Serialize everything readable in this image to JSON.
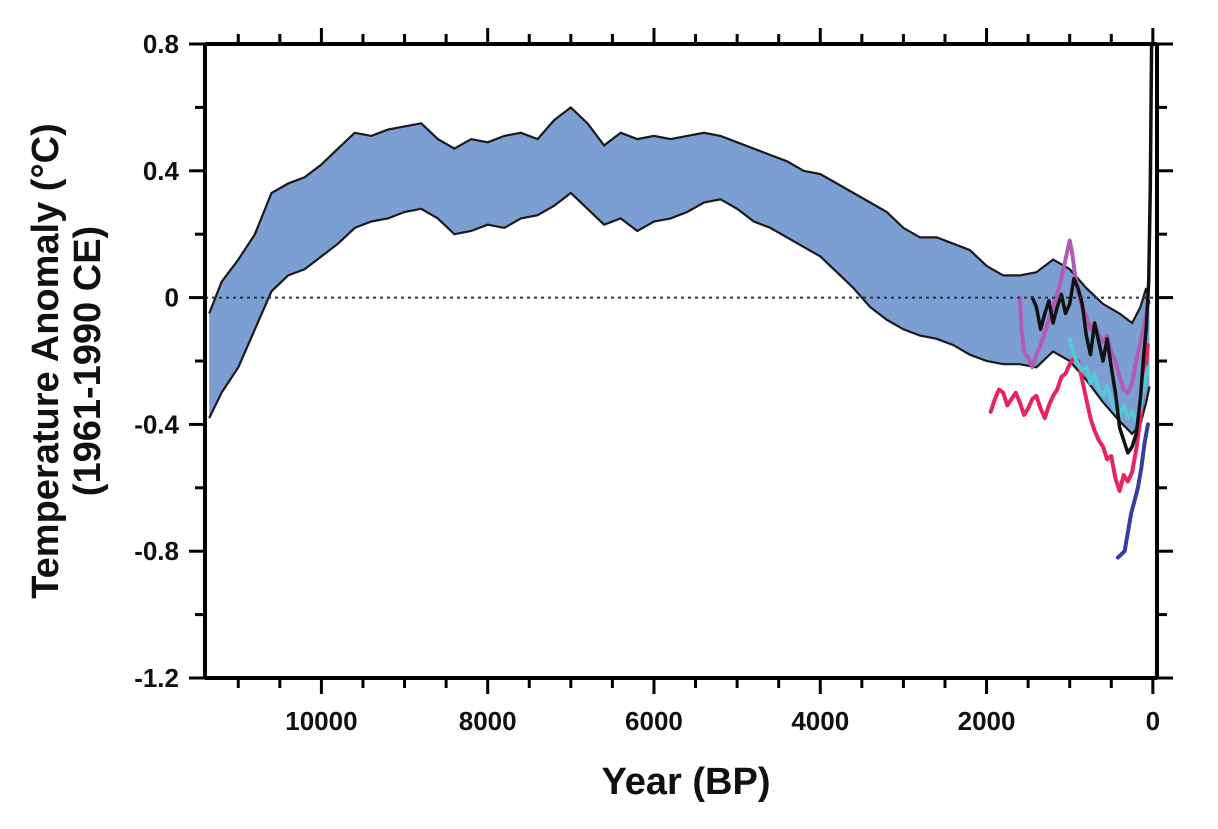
{
  "chart_data": {
    "type": "line",
    "title": "",
    "xlabel": "Year (BP)",
    "ylabel_line1": "Temperature Anomaly (°C)",
    "ylabel_line2": "(1961-1990 CE)",
    "xlim": [
      11400,
      -50
    ],
    "ylim": [
      -1.2,
      0.8
    ],
    "x_reversed": true,
    "x_ticks": [
      10000,
      8000,
      6000,
      4000,
      2000,
      0
    ],
    "y_ticks": [
      0.8,
      0.4,
      0,
      -0.4,
      -0.8,
      -1.2
    ],
    "y_tick_labels": [
      "0.8",
      "0.4",
      "0",
      "-0.4",
      "-0.8",
      "-1.2"
    ],
    "zero_line": {
      "value": 0,
      "style": "dotted"
    },
    "band": {
      "name": "",
      "color": "#7b9fd3",
      "upper": [
        [
          11350,
          -0.05
        ],
        [
          11200,
          0.05
        ],
        [
          11000,
          0.12
        ],
        [
          10800,
          0.2
        ],
        [
          10600,
          0.33
        ],
        [
          10400,
          0.36
        ],
        [
          10200,
          0.38
        ],
        [
          10000,
          0.42
        ],
        [
          9800,
          0.47
        ],
        [
          9600,
          0.52
        ],
        [
          9400,
          0.51
        ],
        [
          9200,
          0.53
        ],
        [
          9000,
          0.54
        ],
        [
          8800,
          0.55
        ],
        [
          8600,
          0.5
        ],
        [
          8400,
          0.47
        ],
        [
          8200,
          0.5
        ],
        [
          8000,
          0.49
        ],
        [
          7800,
          0.51
        ],
        [
          7600,
          0.52
        ],
        [
          7400,
          0.5
        ],
        [
          7200,
          0.56
        ],
        [
          7000,
          0.6
        ],
        [
          6800,
          0.55
        ],
        [
          6600,
          0.48
        ],
        [
          6400,
          0.52
        ],
        [
          6200,
          0.5
        ],
        [
          6000,
          0.51
        ],
        [
          5800,
          0.5
        ],
        [
          5600,
          0.51
        ],
        [
          5400,
          0.52
        ],
        [
          5200,
          0.51
        ],
        [
          5000,
          0.49
        ],
        [
          4800,
          0.47
        ],
        [
          4600,
          0.45
        ],
        [
          4400,
          0.43
        ],
        [
          4200,
          0.4
        ],
        [
          4000,
          0.39
        ],
        [
          3800,
          0.36
        ],
        [
          3600,
          0.33
        ],
        [
          3400,
          0.3
        ],
        [
          3200,
          0.27
        ],
        [
          3000,
          0.22
        ],
        [
          2800,
          0.19
        ],
        [
          2600,
          0.19
        ],
        [
          2400,
          0.17
        ],
        [
          2200,
          0.15
        ],
        [
          2000,
          0.1
        ],
        [
          1800,
          0.07
        ],
        [
          1600,
          0.07
        ],
        [
          1400,
          0.08
        ],
        [
          1200,
          0.12
        ],
        [
          1000,
          0.09
        ],
        [
          800,
          0.03
        ],
        [
          600,
          -0.02
        ],
        [
          400,
          -0.05
        ],
        [
          250,
          -0.08
        ],
        [
          150,
          -0.03
        ],
        [
          80,
          0.03
        ],
        [
          40,
          -0.02
        ]
      ],
      "lower": [
        [
          11350,
          -0.38
        ],
        [
          11200,
          -0.3
        ],
        [
          11000,
          -0.22
        ],
        [
          10800,
          -0.1
        ],
        [
          10600,
          0.02
        ],
        [
          10400,
          0.07
        ],
        [
          10200,
          0.09
        ],
        [
          10000,
          0.13
        ],
        [
          9800,
          0.17
        ],
        [
          9600,
          0.22
        ],
        [
          9400,
          0.24
        ],
        [
          9200,
          0.25
        ],
        [
          9000,
          0.27
        ],
        [
          8800,
          0.28
        ],
        [
          8600,
          0.25
        ],
        [
          8400,
          0.2
        ],
        [
          8200,
          0.21
        ],
        [
          8000,
          0.23
        ],
        [
          7800,
          0.22
        ],
        [
          7600,
          0.25
        ],
        [
          7400,
          0.26
        ],
        [
          7200,
          0.29
        ],
        [
          7000,
          0.33
        ],
        [
          6800,
          0.28
        ],
        [
          6600,
          0.23
        ],
        [
          6400,
          0.25
        ],
        [
          6200,
          0.21
        ],
        [
          6000,
          0.24
        ],
        [
          5800,
          0.25
        ],
        [
          5600,
          0.27
        ],
        [
          5400,
          0.3
        ],
        [
          5200,
          0.31
        ],
        [
          5000,
          0.28
        ],
        [
          4800,
          0.24
        ],
        [
          4600,
          0.22
        ],
        [
          4400,
          0.19
        ],
        [
          4200,
          0.16
        ],
        [
          4000,
          0.13
        ],
        [
          3800,
          0.08
        ],
        [
          3600,
          0.03
        ],
        [
          3400,
          -0.03
        ],
        [
          3200,
          -0.07
        ],
        [
          3000,
          -0.1
        ],
        [
          2800,
          -0.12
        ],
        [
          2600,
          -0.13
        ],
        [
          2400,
          -0.15
        ],
        [
          2200,
          -0.18
        ],
        [
          2000,
          -0.2
        ],
        [
          1800,
          -0.21
        ],
        [
          1600,
          -0.21
        ],
        [
          1400,
          -0.22
        ],
        [
          1200,
          -0.17
        ],
        [
          1000,
          -0.2
        ],
        [
          800,
          -0.26
        ],
        [
          600,
          -0.33
        ],
        [
          400,
          -0.39
        ],
        [
          250,
          -0.43
        ],
        [
          150,
          -0.4
        ],
        [
          80,
          -0.33
        ],
        [
          40,
          -0.28
        ]
      ]
    },
    "series": [
      {
        "name": "",
        "color": "#e8245f",
        "points": [
          [
            1950,
            -0.36
          ],
          [
            1900,
            -0.32
          ],
          [
            1850,
            -0.29
          ],
          [
            1800,
            -0.3
          ],
          [
            1750,
            -0.34
          ],
          [
            1700,
            -0.32
          ],
          [
            1650,
            -0.3
          ],
          [
            1600,
            -0.33
          ],
          [
            1550,
            -0.37
          ],
          [
            1500,
            -0.35
          ],
          [
            1450,
            -0.32
          ],
          [
            1400,
            -0.31
          ],
          [
            1350,
            -0.35
          ],
          [
            1300,
            -0.38
          ],
          [
            1250,
            -0.34
          ],
          [
            1200,
            -0.31
          ],
          [
            1150,
            -0.29
          ],
          [
            1100,
            -0.25
          ],
          [
            1050,
            -0.24
          ],
          [
            1000,
            -0.21
          ],
          [
            950,
            -0.19
          ],
          [
            900,
            -0.2
          ],
          [
            850,
            -0.26
          ],
          [
            800,
            -0.32
          ],
          [
            750,
            -0.38
          ],
          [
            700,
            -0.42
          ],
          [
            650,
            -0.45
          ],
          [
            600,
            -0.47
          ],
          [
            550,
            -0.51
          ],
          [
            500,
            -0.5
          ],
          [
            450,
            -0.57
          ],
          [
            400,
            -0.61
          ],
          [
            350,
            -0.56
          ],
          [
            300,
            -0.58
          ],
          [
            250,
            -0.55
          ],
          [
            200,
            -0.48
          ],
          [
            150,
            -0.38
          ],
          [
            100,
            -0.26
          ],
          [
            60,
            -0.15
          ]
        ]
      },
      {
        "name": "",
        "color": "#b15bb5",
        "points": [
          [
            1600,
            0.0
          ],
          [
            1580,
            -0.1
          ],
          [
            1550,
            -0.17
          ],
          [
            1500,
            -0.19
          ],
          [
            1450,
            -0.22
          ],
          [
            1400,
            -0.18
          ],
          [
            1350,
            -0.15
          ],
          [
            1300,
            -0.11
          ],
          [
            1250,
            -0.07
          ],
          [
            1200,
            -0.03
          ],
          [
            1150,
            0.01
          ],
          [
            1100,
            0.06
          ],
          [
            1050,
            0.12
          ],
          [
            1000,
            0.18
          ],
          [
            970,
            0.14
          ],
          [
            940,
            0.08
          ],
          [
            900,
            0.02
          ],
          [
            850,
            -0.03
          ],
          [
            800,
            -0.06
          ],
          [
            750,
            -0.1
          ],
          [
            700,
            -0.08
          ],
          [
            650,
            -0.12
          ],
          [
            600,
            -0.14
          ],
          [
            550,
            -0.12
          ],
          [
            500,
            -0.17
          ],
          [
            450,
            -0.2
          ],
          [
            400,
            -0.25
          ],
          [
            350,
            -0.29
          ],
          [
            300,
            -0.3
          ],
          [
            250,
            -0.27
          ],
          [
            200,
            -0.2
          ],
          [
            150,
            -0.14
          ],
          [
            100,
            -0.08
          ],
          [
            60,
            -0.02
          ]
        ]
      },
      {
        "name": "",
        "color": "#55c8d8",
        "points": [
          [
            1000,
            -0.13
          ],
          [
            950,
            -0.18
          ],
          [
            900,
            -0.21
          ],
          [
            850,
            -0.23
          ],
          [
            800,
            -0.22
          ],
          [
            750,
            -0.27
          ],
          [
            700,
            -0.24
          ],
          [
            650,
            -0.29
          ],
          [
            600,
            -0.31
          ],
          [
            550,
            -0.28
          ],
          [
            500,
            -0.32
          ],
          [
            450,
            -0.36
          ],
          [
            400,
            -0.37
          ],
          [
            350,
            -0.34
          ],
          [
            300,
            -0.38
          ],
          [
            250,
            -0.36
          ],
          [
            200,
            -0.39
          ],
          [
            150,
            -0.35
          ],
          [
            100,
            -0.27
          ],
          [
            60,
            -0.22
          ]
        ]
      },
      {
        "name": "",
        "color": "#111111",
        "points": [
          [
            1450,
            0.0
          ],
          [
            1400,
            -0.03
          ],
          [
            1350,
            -0.1
          ],
          [
            1300,
            -0.05
          ],
          [
            1250,
            -0.01
          ],
          [
            1200,
            -0.08
          ],
          [
            1150,
            -0.03
          ],
          [
            1100,
            0.01
          ],
          [
            1050,
            -0.05
          ],
          [
            1000,
            -0.02
          ],
          [
            950,
            0.06
          ],
          [
            900,
            0.03
          ],
          [
            850,
            -0.02
          ],
          [
            800,
            -0.12
          ],
          [
            750,
            -0.18
          ],
          [
            700,
            -0.08
          ],
          [
            650,
            -0.14
          ],
          [
            600,
            -0.2
          ],
          [
            550,
            -0.13
          ],
          [
            500,
            -0.22
          ],
          [
            450,
            -0.3
          ],
          [
            400,
            -0.41
          ],
          [
            350,
            -0.45
          ],
          [
            300,
            -0.49
          ],
          [
            250,
            -0.47
          ],
          [
            200,
            -0.43
          ],
          [
            150,
            -0.32
          ],
          [
            110,
            -0.18
          ],
          [
            80,
            -0.1
          ],
          [
            50,
            0.05
          ],
          [
            30,
            0.35
          ],
          [
            15,
            0.8
          ]
        ]
      },
      {
        "name": "",
        "color": "#3b3ba8",
        "points": [
          [
            420,
            -0.82
          ],
          [
            380,
            -0.81
          ],
          [
            340,
            -0.8
          ],
          [
            300,
            -0.74
          ],
          [
            260,
            -0.68
          ],
          [
            220,
            -0.64
          ],
          [
            180,
            -0.6
          ],
          [
            140,
            -0.54
          ],
          [
            100,
            -0.46
          ],
          [
            60,
            -0.4
          ]
        ]
      }
    ]
  }
}
